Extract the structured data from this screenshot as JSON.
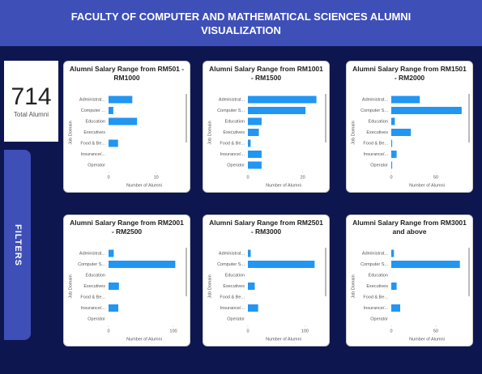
{
  "header": {
    "title": "FACULTY OF COMPUTER AND MATHEMATICAL SCIENCES ALUMNI VISUALIZATION"
  },
  "kpi": {
    "value": 714,
    "label": "Total Alumni"
  },
  "filters": {
    "label": "FILTERS"
  },
  "chart_data": [
    {
      "type": "bar",
      "orientation": "horizontal",
      "title": "Alumni Salary Range from RM501 - RM1000",
      "categories": [
        "Administrat...",
        "Computer ...",
        "Education",
        "Executives",
        "Food & Be...",
        "Insurance/...",
        "Operator"
      ],
      "values": [
        5,
        1,
        6,
        0,
        2,
        0,
        0
      ],
      "color": "#2196f3",
      "xlim": [
        0,
        15
      ],
      "xticks": [
        0,
        10
      ],
      "xlabel": "Number of Alumni",
      "ylabel": "Job Domain"
    },
    {
      "type": "bar",
      "orientation": "horizontal",
      "title": "Alumni Salary Range from RM1001 - RM1500",
      "categories": [
        "Administrat...",
        "Computer S...",
        "Education",
        "Executives",
        "Food & Be...",
        "Insurance/...",
        "Operator"
      ],
      "values": [
        25,
        21,
        5,
        4,
        1,
        5,
        5
      ],
      "color": "#2196f3",
      "xlim": [
        0,
        26
      ],
      "xticks": [
        0,
        20
      ],
      "xlabel": "Number of Alumni",
      "ylabel": "Job Domain"
    },
    {
      "type": "bar",
      "orientation": "horizontal",
      "title": "Alumni Salary Range from RM1501 - RM2000",
      "categories": [
        "Administrat...",
        "Computer S...",
        "Education",
        "Executives",
        "Food & Be...",
        "Insurance/...",
        "Operator"
      ],
      "values": [
        32,
        79,
        4,
        22,
        1,
        6,
        1
      ],
      "color": "#2196f3",
      "xlim": [
        0,
        80
      ],
      "xticks": [
        0,
        50
      ],
      "xlabel": "Number of Alumni",
      "ylabel": "Job Domain"
    },
    {
      "type": "bar",
      "orientation": "horizontal",
      "title": "Alumni Salary Range from RM2001 - RM2500",
      "categories": [
        "Administrat...",
        "Computer S...",
        "Education",
        "Executives",
        "Food & Be...",
        "Insurance/...",
        "Operator"
      ],
      "values": [
        8,
        103,
        0,
        16,
        0,
        15,
        0
      ],
      "color": "#2196f3",
      "xlim": [
        0,
        110
      ],
      "xticks": [
        0,
        100
      ],
      "xlabel": "Number of Alumni",
      "ylabel": "Job Domain"
    },
    {
      "type": "bar",
      "orientation": "horizontal",
      "title": "Alumni Salary Range from RM2501 - RM3000",
      "categories": [
        "Administrat...",
        "Computer S...",
        "Education",
        "Executives",
        "Food & Be...",
        "Insurance/...",
        "Operator"
      ],
      "values": [
        5,
        117,
        0,
        12,
        0,
        18,
        0
      ],
      "color": "#2196f3",
      "xlim": [
        0,
        125
      ],
      "xticks": [
        0,
        100
      ],
      "xlabel": "Number of Alumni",
      "ylabel": "Job Domain"
    },
    {
      "type": "bar",
      "orientation": "horizontal",
      "title": "Alumni Salary Range from RM3001 and above",
      "categories": [
        "Administrat...",
        "Computer S...",
        "Education",
        "Executives",
        "Food & Be...",
        "Insurance/...",
        "Operator"
      ],
      "values": [
        3,
        77,
        0,
        6,
        0,
        10,
        0
      ],
      "color": "#2196f3",
      "xlim": [
        0,
        80
      ],
      "xticks": [
        0,
        50
      ],
      "xlabel": "Number of Alumni",
      "ylabel": "Job Domain"
    }
  ]
}
